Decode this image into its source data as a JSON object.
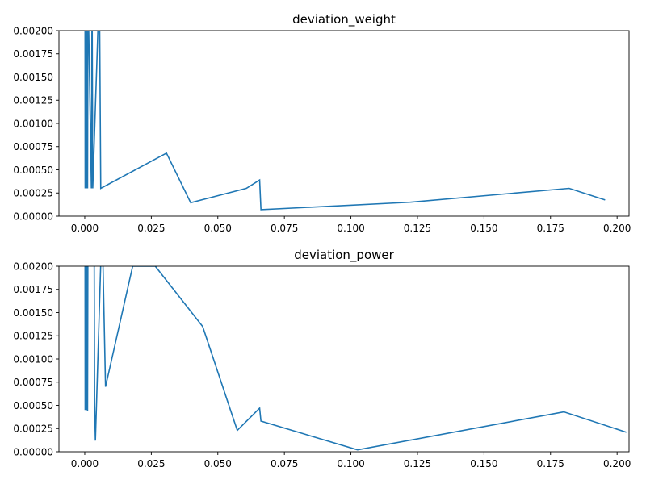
{
  "chart_data": [
    {
      "type": "line",
      "title": "deviation_weight",
      "xlabel": "",
      "ylabel": "",
      "xlim": [
        -0.0097,
        0.2045
      ],
      "ylim": [
        0,
        0.002
      ],
      "xticks": [
        0.0,
        0.025,
        0.05,
        0.075,
        0.1,
        0.125,
        0.15,
        0.175,
        0.2
      ],
      "xtick_labels": [
        "0.000",
        "0.025",
        "0.050",
        "0.075",
        "0.100",
        "0.125",
        "0.150",
        "0.175",
        "0.200"
      ],
      "yticks": [
        0,
        0.00025,
        0.0005,
        0.00075,
        0.001,
        0.00125,
        0.0015,
        0.00175,
        0.002
      ],
      "ytick_labels": [
        "0.00000",
        "0.00025",
        "0.00050",
        "0.00075",
        "0.00100",
        "0.00125",
        "0.00150",
        "0.00175",
        "0.00200"
      ],
      "grid": false,
      "color": "#1f77b4",
      "series": [
        {
          "x": [
            0.0001,
            0.00015,
            0.0003,
            0.00045,
            0.0006,
            0.00075,
            0.0009,
            0.00105,
            0.0012,
            0.0025,
            0.00275,
            0.003,
            0.0055,
            0.006,
            0.0307,
            0.0398,
            0.0607,
            0.0657,
            0.0662,
            0.122,
            0.182,
            0.1955
          ],
          "y": [
            0.0025,
            0.0003,
            0.0025,
            0.0003,
            0.0025,
            0.0003,
            0.0025,
            0.0003,
            0.0025,
            0.0003,
            0.0025,
            0.0003,
            0.0025,
            0.0003,
            0.00068,
            0.000145,
            0.0003,
            0.00039,
            7e-05,
            0.00015,
            0.0003,
            0.000175
          ]
        }
      ]
    },
    {
      "type": "line",
      "title": "deviation_power",
      "xlabel": "",
      "ylabel": "",
      "xlim": [
        -0.0097,
        0.2045
      ],
      "ylim": [
        0,
        0.002
      ],
      "xticks": [
        0.0,
        0.025,
        0.05,
        0.075,
        0.1,
        0.125,
        0.15,
        0.175,
        0.2
      ],
      "xtick_labels": [
        "0.000",
        "0.025",
        "0.050",
        "0.075",
        "0.100",
        "0.125",
        "0.150",
        "0.175",
        "0.200"
      ],
      "yticks": [
        0,
        0.00025,
        0.0005,
        0.00075,
        0.001,
        0.00125,
        0.0015,
        0.00175,
        0.002
      ],
      "ytick_labels": [
        "0.00000",
        "0.00025",
        "0.00050",
        "0.00075",
        "0.00100",
        "0.00125",
        "0.00150",
        "0.00175",
        "0.00200"
      ],
      "grid": false,
      "color": "#1f77b4",
      "series": [
        {
          "x": [
            0.0001,
            0.00015,
            0.0003,
            0.00045,
            0.0006,
            0.00075,
            0.0009,
            0.00105,
            0.0012,
            0.0035,
            0.0037,
            0.004,
            0.0065,
            0.0078,
            0.018,
            0.0265,
            0.0443,
            0.0573,
            0.0657,
            0.0662,
            0.1025,
            0.18,
            0.2035
          ],
          "y": [
            0.0025,
            0.00045,
            0.0025,
            0.00045,
            0.0025,
            0.00045,
            0.0025,
            0.00044,
            0.0025,
            0.0025,
            0.0005,
            0.00012,
            0.0025,
            0.0007,
            0.002,
            0.002,
            0.00135,
            0.00023,
            0.00047,
            0.00033,
            2e-05,
            0.00043,
            0.00021
          ]
        }
      ]
    }
  ]
}
